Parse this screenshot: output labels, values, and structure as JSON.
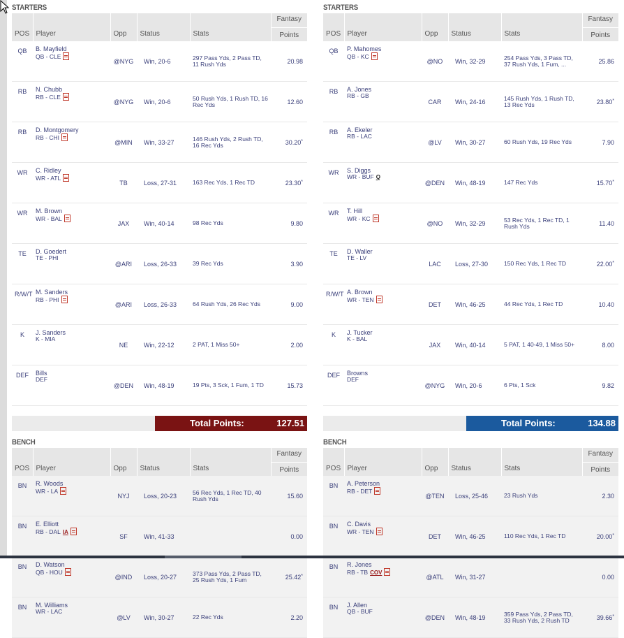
{
  "colors": {
    "team_left_total": "#7a1313",
    "team_right_total": "#1b5a9e"
  },
  "headers": {
    "pos": "POS",
    "player": "Player",
    "opp": "Opp",
    "status": "Status",
    "stats": "Stats",
    "fp1": "Fantasy",
    "fp2": "Points"
  },
  "left": {
    "starters_title": "STARTERS",
    "bench_title": "BENCH",
    "total_label": "Total Points:",
    "total_value": "127.51",
    "starters": [
      {
        "pos": "QB",
        "name": "B. Mayfield",
        "info": "QB - CLE",
        "opp": "@NYG",
        "status": "Win, 20-6",
        "stats": "297 Pass Yds, 2 Pass TD, 11 Rush Yds",
        "points": "20.98",
        "star": "",
        "badge": "",
        "icon": "doc-icon"
      },
      {
        "pos": "RB",
        "name": "N. Chubb",
        "info": "RB - CLE",
        "opp": "@NYG",
        "status": "Win, 20-6",
        "stats": "50 Rush Yds, 1 Rush TD, 16 Rec Yds",
        "points": "12.60",
        "star": "",
        "badge": "",
        "icon": "doc-icon"
      },
      {
        "pos": "RB",
        "name": "D. Montgomery",
        "info": "RB - CHI",
        "opp": "@MIN",
        "status": "Win, 33-27",
        "stats": "146 Rush Yds, 2 Rush TD, 16 Rec Yds",
        "points": "30.20",
        "star": "*",
        "badge": "",
        "icon": "doc-icon"
      },
      {
        "pos": "WR",
        "name": "C. Ridley",
        "info": "WR - ATL",
        "opp": "TB",
        "status": "Loss, 27-31",
        "stats": "163 Rec Yds, 1 Rec TD",
        "points": "23.30",
        "star": "*",
        "badge": "",
        "icon": "doc-icon"
      },
      {
        "pos": "WR",
        "name": "M. Brown",
        "info": "WR - BAL",
        "opp": "JAX",
        "status": "Win, 40-14",
        "stats": "98 Rec Yds",
        "points": "9.80",
        "star": "",
        "badge": "",
        "icon": "doc-icon"
      },
      {
        "pos": "TE",
        "name": "D. Goedert",
        "info": "TE - PHI",
        "opp": "@ARI",
        "status": "Loss, 26-33",
        "stats": "39 Rec Yds",
        "points": "3.90",
        "star": "",
        "badge": "",
        "icon": ""
      },
      {
        "pos": "R/W/T",
        "name": "M. Sanders",
        "info": "RB - PHI",
        "opp": "@ARI",
        "status": "Loss, 26-33",
        "stats": "64 Rush Yds, 26 Rec Yds",
        "points": "9.00",
        "star": "",
        "badge": "",
        "icon": "doc-icon"
      },
      {
        "pos": "K",
        "name": "J. Sanders",
        "info": "K - MIA",
        "opp": "NE",
        "status": "Win, 22-12",
        "stats": "2 PAT, 1 Miss 50+",
        "points": "2.00",
        "star": "",
        "badge": "",
        "icon": ""
      },
      {
        "pos": "DEF",
        "name": "Bills",
        "info": "DEF",
        "opp": "@DEN",
        "status": "Win, 48-19",
        "stats": "19 Pts, 3 Sck, 1 Fum, 1 TD",
        "points": "15.73",
        "star": "",
        "badge": "",
        "icon": ""
      }
    ],
    "bench": [
      {
        "pos": "BN",
        "name": "R. Woods",
        "info": "WR - LA",
        "opp": "NYJ",
        "status": "Loss, 20-23",
        "stats": "56 Rec Yds, 1 Rec TD, 40 Rush Yds",
        "points": "15.60",
        "star": "",
        "badge": "",
        "icon": "doc-icon"
      },
      {
        "pos": "BN",
        "name": "E. Elliott",
        "info": "RB - DAL",
        "opp": "SF",
        "status": "Win, 41-33",
        "stats": "",
        "points": "0.00",
        "star": "",
        "badge": "IA",
        "icon": "doc-icon"
      },
      {
        "pos": "BN",
        "name": "D. Watson",
        "info": "QB - HOU",
        "opp": "@IND",
        "status": "Loss, 20-27",
        "stats": "373 Pass Yds, 2 Pass TD, 25 Rush Yds, 1 Fum",
        "points": "25.42",
        "star": "*",
        "badge": "",
        "icon": "doc-icon"
      },
      {
        "pos": "BN",
        "name": "M. Williams",
        "info": "WR - LAC",
        "opp": "@LV",
        "status": "Win, 30-27",
        "stats": "22 Rec Yds",
        "points": "2.20",
        "star": "",
        "badge": "",
        "icon": ""
      }
    ]
  },
  "right": {
    "starters_title": "STARTERS",
    "bench_title": "BENCH",
    "total_label": "Total Points:",
    "total_value": "134.88",
    "starters": [
      {
        "pos": "QB",
        "name": "P. Mahomes",
        "info": "QB - KC",
        "opp": "@NO",
        "status": "Win, 32-29",
        "stats": "254 Pass Yds, 3 Pass TD, 37 Rush Yds, 1 Fum, ...",
        "points": "25.86",
        "star": "",
        "badge": "",
        "icon": "doc-icon"
      },
      {
        "pos": "RB",
        "name": "A. Jones",
        "info": "RB - GB",
        "opp": "CAR",
        "status": "Win, 24-16",
        "stats": "145 Rush Yds, 1 Rush TD, 13 Rec Yds",
        "points": "23.80",
        "star": "*",
        "badge": "",
        "icon": ""
      },
      {
        "pos": "RB",
        "name": "A. Ekeler",
        "info": "RB - LAC",
        "opp": "@LV",
        "status": "Win, 30-27",
        "stats": "60 Rush Yds, 19 Rec Yds",
        "points": "7.90",
        "star": "",
        "badge": "",
        "icon": ""
      },
      {
        "pos": "WR",
        "name": "S. Diggs",
        "info": "WR - BUF",
        "opp": "@DEN",
        "status": "Win, 48-19",
        "stats": "147 Rec Yds",
        "points": "15.70",
        "star": "*",
        "badge": "Q",
        "icon": ""
      },
      {
        "pos": "WR",
        "name": "T. Hill",
        "info": "WR - KC",
        "opp": "@NO",
        "status": "Win, 32-29",
        "stats": "53 Rec Yds, 1 Rec TD, 1 Rush Yds",
        "points": "11.40",
        "star": "",
        "badge": "",
        "icon": "doc-icon"
      },
      {
        "pos": "TE",
        "name": "D. Waller",
        "info": "TE - LV",
        "opp": "LAC",
        "status": "Loss, 27-30",
        "stats": "150 Rec Yds, 1 Rec TD",
        "points": "22.00",
        "star": "*",
        "badge": "",
        "icon": ""
      },
      {
        "pos": "R/W/T",
        "name": "A. Brown",
        "info": "WR - TEN",
        "opp": "DET",
        "status": "Win, 46-25",
        "stats": "44 Rec Yds, 1 Rec TD",
        "points": "10.40",
        "star": "",
        "badge": "",
        "icon": "doc-icon"
      },
      {
        "pos": "K",
        "name": "J. Tucker",
        "info": "K - BAL",
        "opp": "JAX",
        "status": "Win, 40-14",
        "stats": "5 PAT, 1 40-49, 1 Miss 50+",
        "points": "8.00",
        "star": "",
        "badge": "",
        "icon": ""
      },
      {
        "pos": "DEF",
        "name": "Browns",
        "info": "DEF",
        "opp": "@NYG",
        "status": "Win, 20-6",
        "stats": "6 Pts, 1 Sck",
        "points": "9.82",
        "star": "",
        "badge": "",
        "icon": ""
      }
    ],
    "bench": [
      {
        "pos": "BN",
        "name": "A. Peterson",
        "info": "RB - DET",
        "opp": "@TEN",
        "status": "Loss, 25-46",
        "stats": "23 Rush Yds",
        "points": "2.30",
        "star": "",
        "badge": "",
        "icon": "doc-icon"
      },
      {
        "pos": "BN",
        "name": "C. Davis",
        "info": "WR - TEN",
        "opp": "DET",
        "status": "Win, 46-25",
        "stats": "110 Rec Yds, 1 Rec TD",
        "points": "20.00",
        "star": "*",
        "badge": "",
        "icon": "doc-icon"
      },
      {
        "pos": "BN",
        "name": "R. Jones",
        "info": "RB - TB",
        "opp": "@ATL",
        "status": "Win, 31-27",
        "stats": "",
        "points": "0.00",
        "star": "",
        "badge": "COV",
        "icon": "doc-icon"
      },
      {
        "pos": "BN",
        "name": "J. Allen",
        "info": "QB - BUF",
        "opp": "@DEN",
        "status": "Win, 48-19",
        "stats": "359 Pass Yds, 2 Pass TD, 33 Rush Yds, 2 Rush TD",
        "points": "39.66",
        "star": "*",
        "badge": "",
        "icon": ""
      }
    ]
  }
}
